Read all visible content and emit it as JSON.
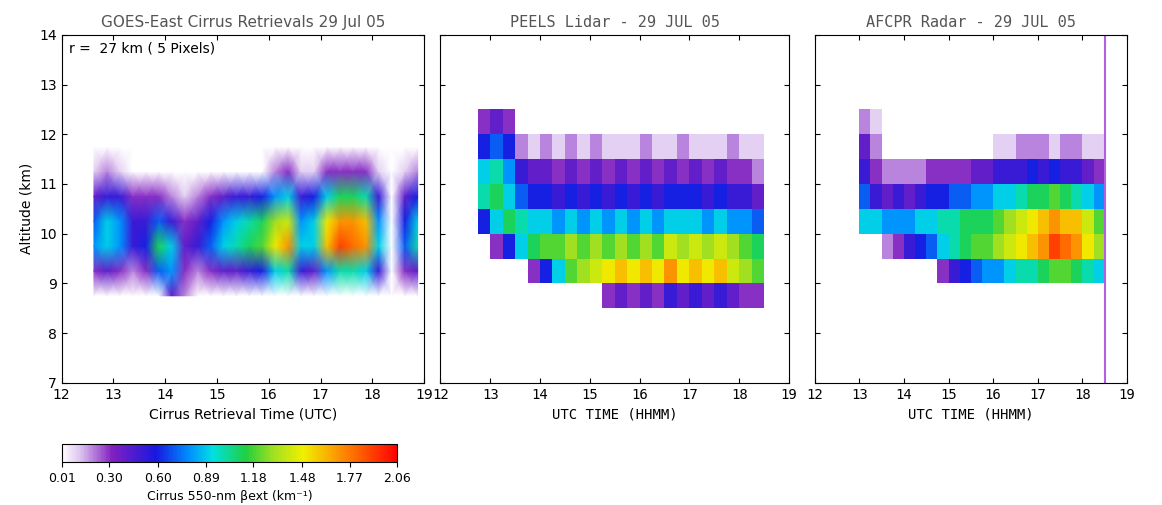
{
  "chart_data": [
    {
      "type": "heatmap",
      "title": "GOES-East Cirrus Retrievals 29 Jul 05",
      "x_label": "Cirrus Retrieval Time (UTC)",
      "y_label": "Altitude (km)",
      "annotation": "r =  27 km ( 5 Pixels)",
      "xlim": [
        12,
        19
      ],
      "ylim": [
        7,
        14
      ],
      "xticks": [
        12,
        13,
        14,
        15,
        16,
        17,
        18,
        19
      ],
      "yticks": [
        7,
        8,
        9,
        10,
        11,
        12,
        13,
        14
      ],
      "x_edges": [
        12.5,
        12.75,
        13.0,
        13.25,
        13.5,
        13.75,
        14.0,
        14.25,
        14.5,
        14.75,
        15.0,
        15.25,
        15.5,
        15.75,
        16.0,
        16.25,
        16.5,
        16.75,
        17.0,
        17.25,
        17.5,
        17.75,
        18.0,
        18.25,
        18.5,
        18.75,
        19.0
      ],
      "y_edges": [
        8.5,
        9.0,
        9.5,
        10.0,
        10.5,
        11.0,
        11.5,
        12.0,
        12.5
      ],
      "cells": [
        [
          0,
          0,
          0,
          0,
          0,
          0,
          0.4,
          0.2,
          0,
          0,
          0,
          0,
          0,
          0,
          0,
          0,
          0,
          0,
          0,
          0,
          0,
          0,
          0,
          0,
          0,
          0
        ],
        [
          0.3,
          0.4,
          0.3,
          0.2,
          0.3,
          0.7,
          0.8,
          0.3,
          0.2,
          0.3,
          0.4,
          0.4,
          0.5,
          0.6,
          0.9,
          1.0,
          0.5,
          0.4,
          0.8,
          1.0,
          1.0,
          0.9,
          0.5,
          0,
          0.3,
          0.4
        ],
        [
          0.8,
          0.9,
          0.8,
          0.5,
          0.6,
          1.1,
          0.9,
          0.4,
          0.5,
          0.7,
          0.9,
          1.0,
          1.1,
          1.2,
          1.5,
          1.7,
          0.9,
          0.9,
          1.6,
          1.9,
          1.8,
          1.7,
          0.9,
          0,
          0.7,
          1.0
        ],
        [
          0.7,
          0.9,
          0.8,
          0.5,
          0.5,
          0.7,
          0.5,
          0.3,
          0.4,
          0.6,
          0.8,
          0.9,
          1.0,
          1.1,
          1.3,
          1.4,
          0.8,
          0.9,
          1.5,
          1.7,
          1.7,
          1.6,
          0.8,
          0,
          0.6,
          0.9
        ],
        [
          0.4,
          0.5,
          0.5,
          0.3,
          0.3,
          0.3,
          0.2,
          0.1,
          0.2,
          0.3,
          0.4,
          0.5,
          0.5,
          0.6,
          0.8,
          0.9,
          0.5,
          0.6,
          0.9,
          1.1,
          1.1,
          1.0,
          0.5,
          0,
          0.4,
          0.6
        ],
        [
          0.1,
          0.2,
          0.1,
          0,
          0,
          0,
          0,
          0,
          0,
          0,
          0,
          0,
          0,
          0,
          0.2,
          0.3,
          0.1,
          0.1,
          0.3,
          0.3,
          0.3,
          0.3,
          0.1,
          0,
          0.1,
          0.2
        ],
        [
          0,
          0,
          0,
          0,
          0,
          0,
          0,
          0,
          0,
          0,
          0,
          0,
          0,
          0,
          0,
          0,
          0,
          0,
          0,
          0,
          0,
          0,
          0,
          0,
          0,
          0
        ],
        [
          0,
          0,
          0,
          0,
          0,
          0,
          0,
          0,
          0,
          0,
          0,
          0,
          0,
          0,
          0,
          0,
          0,
          0,
          0,
          0,
          0,
          0,
          0,
          0,
          0,
          0
        ]
      ],
      "colorbar": {
        "label": "Cirrus 550-nm βext (km⁻¹)",
        "range": [
          0.01,
          2.06
        ],
        "ticks": [
          0.01,
          {
            "value": 0.3,
            "label": "0.30"
          },
          {
            "value": 0.6,
            "label": "0.60"
          },
          0.89,
          1.18,
          1.48,
          1.77,
          2.06
        ]
      }
    },
    {
      "type": "heatmap",
      "title": "PEELS Lidar - 29 JUL 05",
      "x_label": "UTC TIME (HHMM)",
      "tick_labels": "x",
      "xlim": [
        12,
        19
      ],
      "ylim": [
        7,
        14
      ],
      "xticks": [
        12,
        13,
        14,
        15,
        16,
        17,
        18,
        19
      ],
      "yticks": [
        7,
        8,
        9,
        10,
        11,
        12,
        13,
        14
      ],
      "x_edges": [
        12.5,
        12.75,
        13.0,
        13.25,
        13.5,
        13.75,
        14.0,
        14.25,
        14.5,
        14.75,
        15.0,
        15.25,
        15.5,
        15.75,
        16.0,
        16.25,
        16.5,
        16.75,
        17.0,
        17.25,
        17.5,
        17.75,
        18.0,
        18.25,
        18.5,
        18.75,
        19.0
      ],
      "y_edges": [
        8.5,
        9.0,
        9.5,
        10.0,
        10.5,
        11.0,
        11.5,
        12.0,
        12.5
      ],
      "cells": [
        [
          0,
          0,
          0,
          0,
          0,
          0,
          0,
          0,
          0,
          0,
          0,
          0.3,
          0.4,
          0.3,
          0.4,
          0.3,
          0.5,
          0.4,
          0.5,
          0.4,
          0.5,
          0.4,
          0.3,
          0.3,
          0,
          0
        ],
        [
          0,
          0,
          0,
          0,
          0,
          0.3,
          0.6,
          0.9,
          1.2,
          1.3,
          1.4,
          1.5,
          1.6,
          1.5,
          1.6,
          1.5,
          1.7,
          1.5,
          1.6,
          1.5,
          1.6,
          1.4,
          1.3,
          1.2,
          0,
          0
        ],
        [
          0,
          0,
          0.3,
          0.6,
          0.9,
          1.1,
          1.2,
          1.2,
          1.3,
          1.2,
          1.3,
          1.2,
          1.3,
          1.2,
          1.3,
          1.2,
          1.4,
          1.3,
          1.4,
          1.3,
          1.4,
          1.3,
          1.2,
          1.1,
          0,
          0
        ],
        [
          0,
          0.6,
          0.9,
          1.1,
          1.0,
          0.9,
          0.9,
          0.8,
          0.9,
          0.8,
          0.9,
          0.8,
          0.9,
          0.8,
          0.9,
          0.8,
          0.9,
          0.9,
          0.9,
          0.8,
          0.9,
          0.8,
          0.8,
          0.7,
          0,
          0
        ],
        [
          0,
          1.0,
          1.1,
          0.9,
          0.7,
          0.6,
          0.6,
          0.5,
          0.6,
          0.5,
          0.6,
          0.5,
          0.6,
          0.5,
          0.6,
          0.5,
          0.6,
          0.6,
          0.6,
          0.5,
          0.6,
          0.5,
          0.5,
          0.4,
          0,
          0
        ],
        [
          0,
          0.9,
          1.0,
          0.8,
          0.5,
          0.4,
          0.4,
          0.3,
          0.4,
          0.3,
          0.4,
          0.3,
          0.4,
          0.3,
          0.4,
          0.3,
          0.4,
          0.3,
          0.4,
          0.3,
          0.4,
          0.3,
          0.3,
          0.2,
          0,
          0
        ],
        [
          0,
          0.6,
          0.7,
          0.6,
          0.2,
          0.1,
          0.2,
          0.1,
          0.2,
          0.1,
          0.2,
          0.1,
          0.1,
          0.1,
          0.2,
          0.1,
          0.1,
          0.2,
          0.1,
          0.1,
          0.1,
          0.2,
          0.1,
          0.1,
          0,
          0
        ],
        [
          0,
          0.3,
          0.4,
          0.3,
          0,
          0,
          0,
          0,
          0,
          0,
          0,
          0,
          0,
          0,
          0,
          0,
          0,
          0,
          0,
          0,
          0,
          0,
          0,
          0,
          0,
          0
        ]
      ]
    },
    {
      "type": "heatmap",
      "title": "AFCPR Radar - 29 JUL 05",
      "x_label": "UTC TIME (HHMM)",
      "tick_labels": "x",
      "xlim": [
        12,
        19
      ],
      "ylim": [
        7,
        14
      ],
      "xticks": [
        12,
        13,
        14,
        15,
        16,
        17,
        18,
        19
      ],
      "yticks": [
        7,
        8,
        9,
        10,
        11,
        12,
        13,
        14
      ],
      "vertical_line_x": 18.5,
      "x_edges": [
        12.5,
        12.75,
        13.0,
        13.25,
        13.5,
        13.75,
        14.0,
        14.25,
        14.5,
        14.75,
        15.0,
        15.25,
        15.5,
        15.75,
        16.0,
        16.25,
        16.5,
        16.75,
        17.0,
        17.25,
        17.5,
        17.75,
        18.0,
        18.25,
        18.5,
        18.75,
        19.0
      ],
      "y_edges": [
        8.5,
        9.0,
        9.5,
        10.0,
        10.5,
        11.0,
        11.5,
        12.0,
        12.5
      ],
      "cells": [
        [
          0,
          0,
          0,
          0,
          0,
          0,
          0,
          0,
          0,
          0,
          0,
          0,
          0,
          0,
          0,
          0,
          0,
          0,
          0,
          0,
          0,
          0,
          0,
          0,
          0,
          0
        ],
        [
          0,
          0,
          0,
          0,
          0,
          0,
          0,
          0,
          0,
          0.3,
          0.5,
          0.6,
          0.7,
          0.8,
          0.8,
          0.9,
          1.0,
          1.0,
          1.1,
          1.2,
          1.2,
          1.1,
          1.0,
          0.9,
          0,
          0
        ],
        [
          0,
          0,
          0,
          0,
          0.2,
          0.3,
          0.5,
          0.6,
          0.7,
          0.9,
          1.0,
          1.1,
          1.2,
          1.2,
          1.3,
          1.4,
          1.5,
          1.6,
          1.7,
          1.9,
          1.8,
          1.7,
          1.5,
          1.3,
          0,
          0
        ],
        [
          0,
          0,
          0.9,
          0.9,
          0.8,
          0.8,
          0.8,
          0.9,
          0.9,
          1.0,
          1.0,
          1.1,
          1.1,
          1.1,
          1.2,
          1.3,
          1.4,
          1.5,
          1.6,
          1.7,
          1.6,
          1.6,
          1.4,
          1.2,
          0,
          0
        ],
        [
          0,
          0,
          0.7,
          0.5,
          0.4,
          0.5,
          0.4,
          0.5,
          0.6,
          0.6,
          0.7,
          0.7,
          0.8,
          0.8,
          0.9,
          0.9,
          1.0,
          1.1,
          1.1,
          1.2,
          1.1,
          1.0,
          0.9,
          0.8,
          0,
          0
        ],
        [
          0,
          0,
          0.5,
          0.3,
          0.2,
          0.2,
          0.2,
          0.2,
          0.3,
          0.3,
          0.3,
          0.3,
          0.4,
          0.4,
          0.5,
          0.5,
          0.5,
          0.6,
          0.5,
          0.6,
          0.5,
          0.5,
          0.4,
          0.3,
          0,
          0
        ],
        [
          0,
          0,
          0.4,
          0.2,
          0,
          0,
          0,
          0,
          0,
          0,
          0,
          0,
          0,
          0,
          0.1,
          0.1,
          0.2,
          0.2,
          0.2,
          0.1,
          0.2,
          0.2,
          0.1,
          0.1,
          0,
          0
        ],
        [
          0,
          0,
          0.2,
          0.1,
          0,
          0,
          0,
          0,
          0,
          0,
          0,
          0,
          0,
          0,
          0,
          0,
          0,
          0,
          0,
          0,
          0,
          0,
          0,
          0,
          0,
          0
        ]
      ]
    }
  ]
}
